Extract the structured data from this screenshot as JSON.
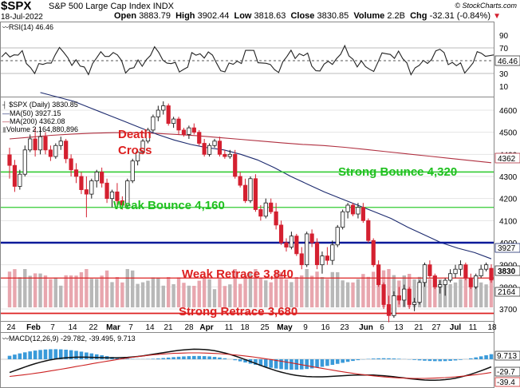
{
  "header": {
    "symbol": "$SPX",
    "name": "S&P 500 Large Cap Index",
    "exchange": "INDX",
    "date": "18-Jul-2022",
    "open_label": "Open",
    "open": "3883.79",
    "high_label": "High",
    "high": "3902.44",
    "low_label": "Low",
    "low": "3818.63",
    "close_label": "Close",
    "close": "3830.85",
    "volume_label": "Volume",
    "volume": "2.2B",
    "chg_label": "Chg",
    "chg": "-32.31 (-0.84%)",
    "watermark": "© StockCharts.com"
  },
  "colors": {
    "up": "#1a1a1a",
    "down": "#d42030",
    "ma50": "#1c2a6e",
    "ma200": "#b03040",
    "green_line": "#33cc33",
    "blue_line": "#0a1a9a",
    "red_line": "#dd2222",
    "annotation_red": "#dd2020",
    "annotation_green": "#20c020",
    "vol_up": "#b8b8b8",
    "vol_down": "#e8a6ae",
    "macd_hist": "#3a9ad9"
  },
  "rsi": {
    "label": "RSI(14) 46.46",
    "value_tag": "46.46",
    "ticks": [
      "90",
      "70",
      "50",
      "30",
      "10"
    ]
  },
  "price_legend": {
    "main": "$SPX (Daily) 3830.85",
    "ma50": "MA(50) 3927.15",
    "ma200": "MA(200) 4362.08",
    "volume": "Volume 2,164,880,896"
  },
  "price_ticks": [
    "4600",
    "4500",
    "4400",
    "4300",
    "4200",
    "4100",
    "4000",
    "3900",
    "3800",
    "3700"
  ],
  "price_tags": {
    "ma200": "4362",
    "ma50": "3927",
    "close": "3830"
  },
  "volume_tag": "2164",
  "annotations": {
    "death_cross_1": "Death",
    "death_cross_2": "Cross",
    "strong_bounce": "Strong Bounce 4,320",
    "weak_bounce": "Weak Bounce 4,160",
    "weak_retrace": "Weak Retrace 3,840",
    "strong_retrace": "Strong Retrace 3,680"
  },
  "x_labels": [
    "24",
    "Feb",
    "7",
    "14",
    "22",
    "Mar",
    "7",
    "14",
    "21",
    "28",
    "Apr",
    "11",
    "18",
    "25",
    "May",
    "9",
    "16",
    "23",
    "Jun",
    "6",
    "13",
    "21",
    "27",
    "Jul",
    "11",
    "18"
  ],
  "macd": {
    "label": "MACD(12,26,9) -29.782, -39.495, 9.713",
    "tags": [
      "9.713",
      "-29.7",
      "-39.4"
    ]
  },
  "chart_data": {
    "type": "candlestick",
    "title": "$SPX S&P 500 Large Cap Index INDX",
    "ylim": [
      3630,
      4700
    ],
    "horizontal_levels": [
      {
        "label": "Strong Bounce 4,320",
        "value": 4320
      },
      {
        "label": "Weak Bounce 4,160",
        "value": 4160
      },
      {
        "value": 4000
      },
      {
        "label": "Weak Retrace 3,840",
        "value": 3840
      },
      {
        "label": "Strong Retrace 3,680",
        "value": 3680
      }
    ],
    "ohlc": [
      [
        4398,
        4430,
        4290,
        4350
      ],
      [
        4350,
        4375,
        4230,
        4255
      ],
      [
        4255,
        4330,
        4240,
        4310
      ],
      [
        4310,
        4440,
        4300,
        4420
      ],
      [
        4420,
        4490,
        4410,
        4470
      ],
      [
        4470,
        4520,
        4390,
        4420
      ],
      [
        4420,
        4520,
        4400,
        4480
      ],
      [
        4480,
        4500,
        4400,
        4420
      ],
      [
        4420,
        4440,
        4370,
        4390
      ],
      [
        4390,
        4450,
        4380,
        4440
      ],
      [
        4440,
        4480,
        4420,
        4460
      ],
      [
        4460,
        4470,
        4360,
        4380
      ],
      [
        4380,
        4400,
        4300,
        4330
      ],
      [
        4330,
        4360,
        4270,
        4300
      ],
      [
        4300,
        4320,
        4220,
        4240
      ],
      [
        4240,
        4300,
        4115,
        4220
      ],
      [
        4220,
        4290,
        4200,
        4280
      ],
      [
        4280,
        4330,
        4250,
        4320
      ],
      [
        4320,
        4340,
        4250,
        4270
      ],
      [
        4270,
        4290,
        4180,
        4200
      ],
      [
        4200,
        4240,
        4160,
        4230
      ],
      [
        4230,
        4270,
        4170,
        4190
      ],
      [
        4190,
        4210,
        4150,
        4170
      ],
      [
        4170,
        4290,
        4160,
        4280
      ],
      [
        4280,
        4380,
        4270,
        4370
      ],
      [
        4370,
        4420,
        4350,
        4410
      ],
      [
        4410,
        4470,
        4400,
        4460
      ],
      [
        4460,
        4520,
        4450,
        4510
      ],
      [
        4510,
        4580,
        4500,
        4570
      ],
      [
        4570,
        4620,
        4550,
        4600
      ],
      [
        4600,
        4640,
        4580,
        4620
      ],
      [
        4620,
        4630,
        4530,
        4540
      ],
      [
        4540,
        4570,
        4520,
        4560
      ],
      [
        4560,
        4570,
        4490,
        4510
      ],
      [
        4510,
        4520,
        4480,
        4490
      ],
      [
        4490,
        4530,
        4470,
        4520
      ],
      [
        4520,
        4540,
        4490,
        4500
      ],
      [
        4500,
        4510,
        4440,
        4450
      ],
      [
        4450,
        4470,
        4390,
        4400
      ],
      [
        4400,
        4450,
        4390,
        4440
      ],
      [
        4440,
        4470,
        4430,
        4460
      ],
      [
        4460,
        4480,
        4390,
        4400
      ],
      [
        4400,
        4420,
        4380,
        4390
      ],
      [
        4390,
        4420,
        4380,
        4400
      ],
      [
        4400,
        4420,
        4290,
        4300
      ],
      [
        4300,
        4320,
        4250,
        4260
      ],
      [
        4260,
        4290,
        4180,
        4190
      ],
      [
        4190,
        4300,
        4180,
        4290
      ],
      [
        4290,
        4310,
        4140,
        4150
      ],
      [
        4150,
        4170,
        4100,
        4120
      ],
      [
        4120,
        4200,
        4110,
        4180
      ],
      [
        4180,
        4200,
        4130,
        4140
      ],
      [
        4140,
        4180,
        4060,
        4080
      ],
      [
        4080,
        4100,
        3990,
        4000
      ],
      [
        4000,
        4020,
        3960,
        3980
      ],
      [
        3980,
        4050,
        3970,
        4030
      ],
      [
        4030,
        4040,
        3940,
        3950
      ],
      [
        3950,
        3980,
        3880,
        3900
      ],
      [
        3900,
        4050,
        3890,
        4040
      ],
      [
        4040,
        4060,
        3980,
        4000
      ],
      [
        4000,
        4020,
        3880,
        3900
      ],
      [
        3900,
        3960,
        3860,
        3940
      ],
      [
        3940,
        3980,
        3900,
        3920
      ],
      [
        3920,
        4010,
        3900,
        3990
      ],
      [
        3990,
        4080,
        3980,
        4070
      ],
      [
        4070,
        4150,
        4060,
        4140
      ],
      [
        4140,
        4180,
        4110,
        4170
      ],
      [
        4170,
        4180,
        4120,
        4130
      ],
      [
        4130,
        4180,
        4110,
        4160
      ],
      [
        4160,
        4180,
        4090,
        4100
      ],
      [
        4100,
        4110,
        4000,
        4010
      ],
      [
        4010,
        4020,
        3890,
        3900
      ],
      [
        3900,
        3920,
        3800,
        3810
      ],
      [
        3810,
        3820,
        3700,
        3720
      ],
      [
        3720,
        3760,
        3640,
        3670
      ],
      [
        3670,
        3780,
        3660,
        3760
      ],
      [
        3760,
        3800,
        3720,
        3740
      ],
      [
        3740,
        3810,
        3710,
        3790
      ],
      [
        3790,
        3800,
        3700,
        3720
      ],
      [
        3720,
        3750,
        3690,
        3730
      ],
      [
        3730,
        3830,
        3720,
        3820
      ],
      [
        3820,
        3910,
        3800,
        3900
      ],
      [
        3900,
        3920,
        3840,
        3850
      ],
      [
        3850,
        3860,
        3790,
        3800
      ],
      [
        3800,
        3830,
        3770,
        3810
      ],
      [
        3810,
        3840,
        3760,
        3830
      ],
      [
        3830,
        3880,
        3820,
        3860
      ],
      [
        3860,
        3900,
        3840,
        3880
      ],
      [
        3880,
        3920,
        3850,
        3900
      ],
      [
        3900,
        3910,
        3830,
        3840
      ],
      [
        3840,
        3860,
        3790,
        3800
      ],
      [
        3800,
        3860,
        3790,
        3850
      ],
      [
        3850,
        3900,
        3840,
        3880
      ],
      [
        3880,
        3910,
        3870,
        3900
      ],
      [
        3884,
        3902,
        3819,
        3831
      ]
    ],
    "series": [
      {
        "name": "MA(50)",
        "values": [
          4440,
          4680,
          4660,
          4640,
          4610,
          4580,
          4550,
          4520,
          4490,
          4465,
          4445,
          4430,
          4420,
          4400,
          4375,
          4340,
          4300,
          4265,
          4230,
          4200,
          4170,
          4140,
          4110,
          4070,
          4035,
          4000,
          3975,
          3955,
          3927
        ]
      },
      {
        "name": "MA(200)",
        "values": [
          4470,
          4478,
          4486,
          4492,
          4496,
          4498,
          4498,
          4495,
          4490,
          4484,
          4476,
          4468,
          4460,
          4452,
          4445,
          4440,
          4432,
          4422,
          4412,
          4402,
          4392,
          4382,
          4372,
          4362
        ]
      }
    ]
  }
}
